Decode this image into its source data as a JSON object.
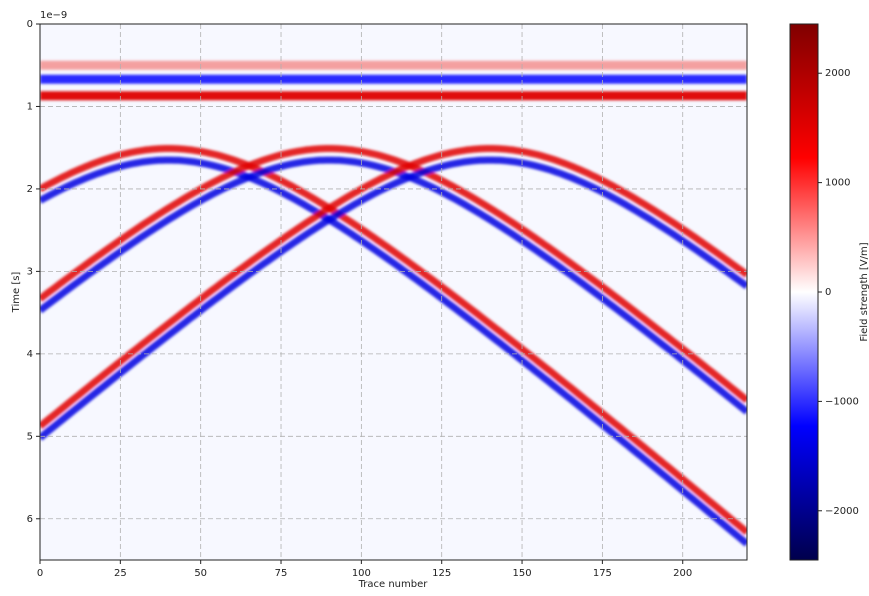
{
  "chart_data": {
    "type": "bscan",
    "xlabel": "Trace number",
    "ylabel": "Time [s]",
    "y_offset_label": "1e−9",
    "xlim": [
      0,
      220
    ],
    "xticks": [
      0,
      25,
      50,
      75,
      100,
      125,
      150,
      175,
      200
    ],
    "ylim": [
      6.5,
      0
    ],
    "yticks": [
      0,
      1,
      2,
      3,
      4,
      5,
      6
    ],
    "grid": true,
    "direct_wave": [
      {
        "time": 0.5,
        "color": "#f4a0a0"
      },
      {
        "time": 0.67,
        "color": "#2a2aff"
      },
      {
        "time": 0.87,
        "color": "#e01010"
      }
    ],
    "reflectors": [
      {
        "x": 40,
        "t0": 1.58
      },
      {
        "x": 90,
        "t0": 1.58
      },
      {
        "x": 140,
        "t0": 1.58
      }
    ],
    "moveout": 0.0335,
    "wavelet": [
      {
        "offset": -0.07,
        "color": "#e00000"
      },
      {
        "offset": 0.07,
        "color": "#0000e0"
      }
    ],
    "colorbar": {
      "label": "Field strength [V/m]",
      "lim": [
        -2450,
        2450
      ],
      "ticks": [
        {
          "value": -2000,
          "label": "−2000"
        },
        {
          "value": -1000,
          "label": "−1000"
        },
        0,
        1000,
        2000
      ],
      "colormap": [
        "#00004c",
        "#0000ff",
        "#ffffff",
        "#ff0000",
        "#800000"
      ]
    }
  }
}
